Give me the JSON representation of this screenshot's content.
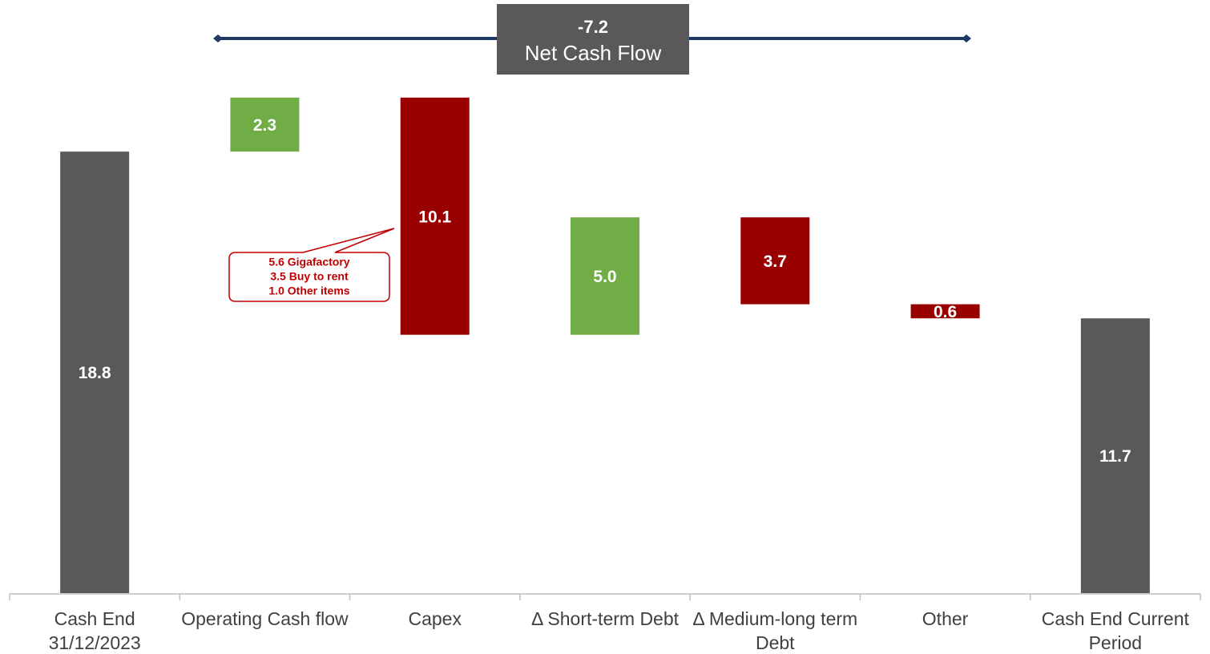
{
  "chart_data": {
    "type": "waterfall",
    "categories": [
      "Cash End 31/12/2023",
      "Operating Cash flow",
      "Capex",
      "Δ Short-term Debt",
      "Δ Medium-long term Debt",
      "Other",
      "Cash End Current Period"
    ],
    "values": [
      18.8,
      2.3,
      10.1,
      5.0,
      3.7,
      0.6,
      11.7
    ],
    "value_labels": [
      "18.8",
      "2.3",
      "10.1",
      "5.0",
      "3.7",
      "0.6",
      "11.7"
    ],
    "measures": [
      "total",
      "increase",
      "decrease",
      "increase",
      "decrease",
      "decrease",
      "total"
    ],
    "colors": [
      "#595959",
      "#70ad47",
      "#990000",
      "#70ad47",
      "#990000",
      "#990000",
      "#595959"
    ],
    "ylim": [
      0,
      22
    ],
    "net": {
      "value": -7.2,
      "label": "Net Cash Flow"
    },
    "callout": {
      "lines": [
        "5.6 Gigafactory",
        "3.5 Buy to rent",
        "1.0 Other items"
      ]
    }
  }
}
